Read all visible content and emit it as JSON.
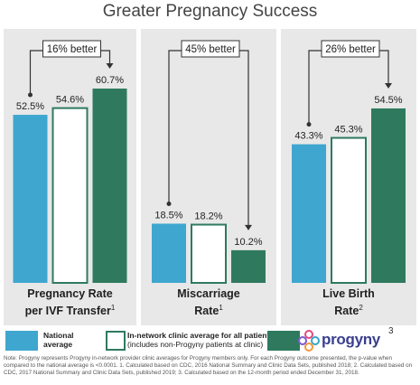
{
  "title": "Greater Pregnancy Success",
  "colors": {
    "national": "#3fa7cf",
    "in_network": "#ffffff",
    "in_network_border": "#2f7a5f",
    "progyny": "#2f7a5f",
    "panel_bg": "#e8e8e8"
  },
  "chart_data": {
    "type": "bar",
    "series_names": [
      "National average",
      "In-network clinic average for all patients (includes non-Progyny patients at clinic)",
      "Progyny"
    ],
    "panels": [
      {
        "title_line1": "Pregnancy Rate",
        "title_line2": "per IVF Transfer",
        "footnote": "1",
        "values": [
          52.5,
          54.6,
          60.7
        ],
        "labels": [
          "52.5%",
          "54.6%",
          "60.7%"
        ],
        "better_label": "16% better",
        "compare_from": 0,
        "compare_to": 2
      },
      {
        "title_line1": "Miscarriage",
        "title_line2": "Rate",
        "footnote": "1",
        "values": [
          18.5,
          18.2,
          10.2
        ],
        "labels": [
          "18.5%",
          "18.2%",
          "10.2%"
        ],
        "better_label": "45% better",
        "compare_from": 0,
        "compare_to": 2
      },
      {
        "title_line1": "Live Birth",
        "title_line2": "Rate",
        "footnote": "2",
        "values": [
          43.3,
          45.3,
          54.5
        ],
        "labels": [
          "43.3%",
          "45.3%",
          "54.5%"
        ],
        "better_label": "26% better",
        "compare_from": 0,
        "compare_to": 2
      }
    ]
  },
  "legend": {
    "national": "National average",
    "in_network_main": "In-network clinic average for all patients",
    "in_network_sub": "(includes non-Progyny patients at clinic)",
    "brand": "progyny",
    "brand_sup": "3"
  },
  "note": "Note: Progyny represents Progyny in-network provider clinic averages for Progyny members only. For each Progyny outcome presented, the p-value when compared to the national average is <0.0001. 1. Calculated based on CDC, 2016 National Summary and Clinic Data Sets, published 2018; 2. Calculated based on CDC, 2017 National Summary and Clinic Data Sets, published 2019; 3. Calculated based on the 12-month period ended December 31, 2018."
}
